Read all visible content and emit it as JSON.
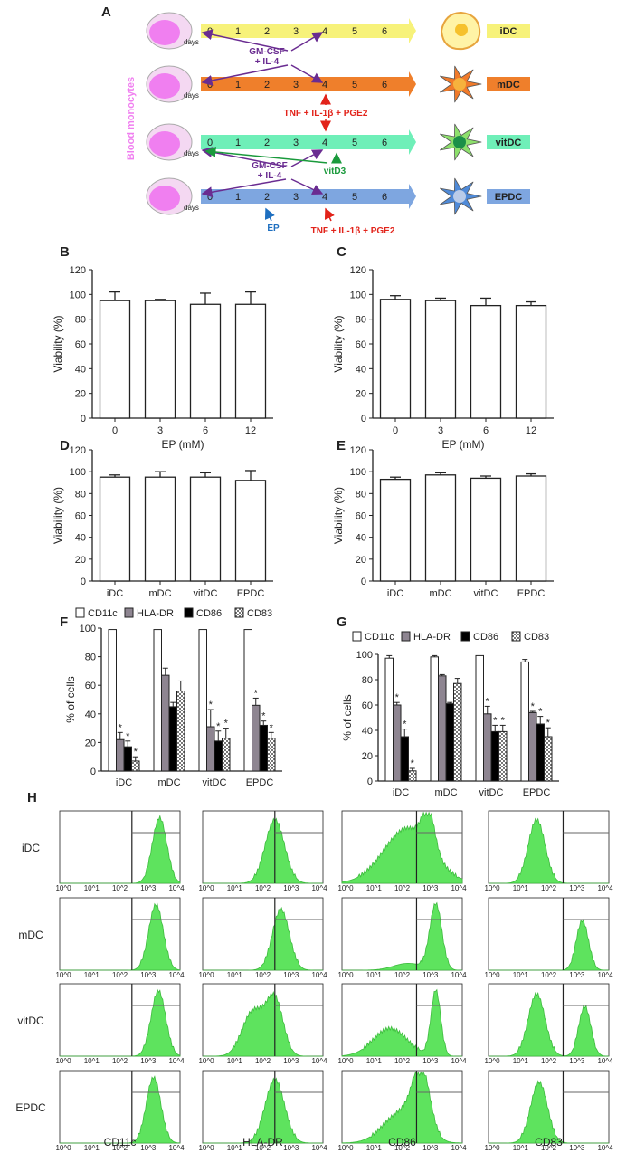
{
  "panel_letters": [
    "A",
    "B",
    "C",
    "D",
    "E",
    "F",
    "G",
    "H"
  ],
  "schematic": {
    "source_label": "Blood monocytes",
    "days_label": "days",
    "day_numbers": [
      "0",
      "1",
      "2",
      "3",
      "4",
      "5",
      "6"
    ],
    "rows": [
      {
        "cell": "iDC",
        "arrow_color": "#f7f27a"
      },
      {
        "cell": "mDC",
        "arrow_color": "#ef7f2b"
      },
      {
        "cell": "vitDC",
        "arrow_color": "#6fefb8"
      },
      {
        "cell": "EPDC",
        "arrow_color": "#7ea6e0"
      }
    ],
    "gm_csf_label_1": "GM-CSF\n+ IL-4",
    "gm_csf_label_2": "GM-CSF\n+ IL-4",
    "maturation_label_1": "TNF + IL-1β + PGE2",
    "maturation_label_2": "TNF + IL-1β + PGE2",
    "vitd3_label": "vitD3",
    "ep_label": "EP",
    "colors": {
      "purple": "#6a2c91",
      "red": "#e2231a",
      "green": "#1a9a3c",
      "blue": "#1e6fc0",
      "monocyte": "#f07ff0"
    }
  },
  "chart_data": [
    {
      "id": "B",
      "type": "bar",
      "categories": [
        "0",
        "3",
        "6",
        "12"
      ],
      "values": [
        95,
        95,
        92,
        92
      ],
      "errors": [
        7,
        1,
        9,
        10
      ],
      "xlabel": "EP (mM)",
      "ylabel": "Viability (%)",
      "ylim": [
        0,
        120
      ],
      "yticks": [
        "0",
        "20",
        "40",
        "60",
        "80",
        "100",
        "120"
      ]
    },
    {
      "id": "C",
      "type": "bar",
      "categories": [
        "0",
        "3",
        "6",
        "12"
      ],
      "values": [
        96,
        95,
        91,
        91
      ],
      "errors": [
        3,
        2,
        6,
        3
      ],
      "xlabel": "EP (mM)",
      "ylabel": "Viability (%)",
      "ylim": [
        0,
        120
      ],
      "yticks": [
        "0",
        "20",
        "40",
        "60",
        "80",
        "100",
        "120"
      ]
    },
    {
      "id": "D",
      "type": "bar",
      "categories": [
        "iDC",
        "mDC",
        "vitDC",
        "EPDC"
      ],
      "values": [
        95,
        95,
        95,
        92
      ],
      "errors": [
        2,
        5,
        4,
        9
      ],
      "xlabel": "",
      "ylabel": "Viability (%)",
      "ylim": [
        0,
        120
      ],
      "yticks": [
        "0",
        "20",
        "40",
        "60",
        "80",
        "100",
        "120"
      ]
    },
    {
      "id": "E",
      "type": "bar",
      "categories": [
        "iDC",
        "mDC",
        "vitDC",
        "EPDC"
      ],
      "values": [
        93,
        97,
        94,
        96
      ],
      "errors": [
        2,
        2,
        2,
        2
      ],
      "xlabel": "",
      "ylabel": "Viability (%)",
      "ylim": [
        0,
        120
      ],
      "yticks": [
        "0",
        "20",
        "40",
        "60",
        "80",
        "100",
        "120"
      ]
    },
    {
      "id": "F",
      "type": "bar",
      "categories": [
        "iDC",
        "mDC",
        "vitDC",
        "EPDC"
      ],
      "legend": [
        "CD11c",
        "HLA-DR",
        "CD86",
        "CD83"
      ],
      "series": [
        {
          "name": "CD11c",
          "values": [
            99,
            99,
            99,
            99
          ],
          "errors": [
            0,
            0,
            0,
            0
          ],
          "sig": [
            false,
            false,
            false,
            false
          ]
        },
        {
          "name": "HLA-DR",
          "values": [
            22,
            67,
            31,
            46
          ],
          "errors": [
            5,
            5,
            12,
            5
          ],
          "sig": [
            true,
            false,
            true,
            true
          ]
        },
        {
          "name": "CD86",
          "values": [
            17,
            45,
            21,
            32
          ],
          "errors": [
            4,
            3,
            7,
            3
          ],
          "sig": [
            true,
            false,
            true,
            true
          ]
        },
        {
          "name": "CD83",
          "values": [
            7,
            56,
            23,
            23
          ],
          "errors": [
            3,
            7,
            7,
            4
          ],
          "sig": [
            true,
            false,
            true,
            true
          ]
        }
      ],
      "sig_mark": "*",
      "ylabel": "% of cells",
      "ylim": [
        0,
        100
      ],
      "yticks": [
        "0",
        "20",
        "40",
        "60",
        "80",
        "100"
      ]
    },
    {
      "id": "G",
      "type": "bar",
      "categories": [
        "iDC",
        "mDC",
        "vitDC",
        "EPDC"
      ],
      "legend": [
        "CD11c",
        "HLA-DR",
        "CD86",
        "CD83"
      ],
      "series": [
        {
          "name": "CD11c",
          "values": [
            97,
            98,
            99,
            94
          ],
          "errors": [
            2,
            1,
            0,
            2
          ],
          "sig": [
            false,
            false,
            false,
            false
          ]
        },
        {
          "name": "HLA-DR",
          "values": [
            60,
            83,
            53,
            54
          ],
          "errors": [
            2,
            1,
            6,
            1
          ],
          "sig": [
            true,
            false,
            true,
            true
          ]
        },
        {
          "name": "CD86",
          "values": [
            35,
            61,
            39,
            45
          ],
          "errors": [
            6,
            1,
            5,
            6
          ],
          "sig": [
            true,
            false,
            true,
            true
          ]
        },
        {
          "name": "CD83",
          "values": [
            8,
            77,
            39,
            35
          ],
          "errors": [
            2,
            4,
            5,
            7
          ],
          "sig": [
            true,
            false,
            true,
            true
          ]
        }
      ],
      "sig_mark": "*",
      "ylabel": "% of cells",
      "ylim": [
        0,
        100
      ],
      "yticks": [
        "0",
        "20",
        "40",
        "60",
        "80",
        "100"
      ]
    }
  ],
  "flow": {
    "rows": [
      "iDC",
      "mDC",
      "vitDC",
      "EPDC"
    ],
    "columns": [
      "CD11c",
      "HLA-DR",
      "CD86",
      "CD83"
    ],
    "histogram_color": "#5ee35e",
    "axis_ticks": [
      "10^0",
      "10^1",
      "10^2",
      "10^3",
      "10^4"
    ],
    "peaks": [
      [
        [
          {
            "p": 0.83,
            "w": 0.06,
            "h": 0.95
          }
        ],
        [
          {
            "p": 0.6,
            "w": 0.08,
            "h": 0.92
          }
        ],
        [
          {
            "p": 0.55,
            "w": 0.2,
            "h": 0.8
          },
          {
            "p": 0.72,
            "w": 0.05,
            "h": 0.55
          }
        ],
        [
          {
            "p": 0.4,
            "w": 0.07,
            "h": 0.92
          }
        ]
      ],
      [
        [
          {
            "p": 0.8,
            "w": 0.06,
            "h": 0.95
          }
        ],
        [
          {
            "p": 0.65,
            "w": 0.07,
            "h": 0.88
          }
        ],
        [
          {
            "p": 0.78,
            "w": 0.05,
            "h": 0.95
          },
          {
            "p": 0.55,
            "w": 0.12,
            "h": 0.1
          }
        ],
        [
          {
            "p": 0.78,
            "w": 0.05,
            "h": 0.72
          }
        ]
      ],
      [
        [
          {
            "p": 0.82,
            "w": 0.06,
            "h": 0.95
          }
        ],
        [
          {
            "p": 0.42,
            "w": 0.09,
            "h": 0.65
          },
          {
            "p": 0.6,
            "w": 0.07,
            "h": 0.8
          }
        ],
        [
          {
            "p": 0.4,
            "w": 0.14,
            "h": 0.4
          },
          {
            "p": 0.78,
            "w": 0.04,
            "h": 0.95
          }
        ],
        [
          {
            "p": 0.4,
            "w": 0.07,
            "h": 0.9
          },
          {
            "p": 0.8,
            "w": 0.05,
            "h": 0.72
          }
        ]
      ],
      [
        [
          {
            "p": 0.78,
            "w": 0.06,
            "h": 0.95
          }
        ],
        [
          {
            "p": 0.6,
            "w": 0.08,
            "h": 0.92
          }
        ],
        [
          {
            "p": 0.5,
            "w": 0.15,
            "h": 0.45
          },
          {
            "p": 0.66,
            "w": 0.07,
            "h": 0.9
          }
        ],
        [
          {
            "p": 0.42,
            "w": 0.07,
            "h": 0.88
          }
        ]
      ]
    ]
  }
}
